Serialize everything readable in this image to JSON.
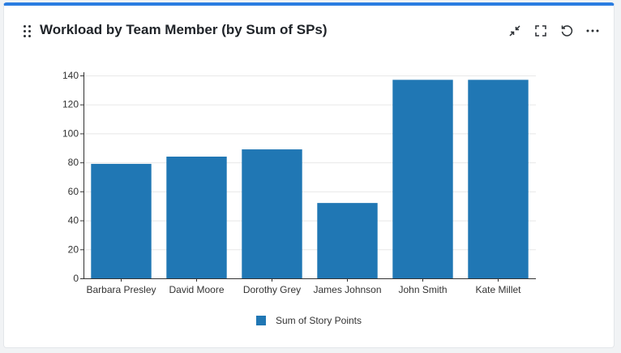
{
  "header": {
    "title": "Workload by Team Member (by Sum of SPs)",
    "icons": [
      "drag-handle-icon",
      "collapse-icon",
      "fullscreen-icon",
      "refresh-icon",
      "more-icon"
    ]
  },
  "chart_data": {
    "type": "bar",
    "categories": [
      "Barbara Presley",
      "David Moore",
      "Dorothy Grey",
      "James Johnson",
      "John Smith",
      "Kate Millet"
    ],
    "series": [
      {
        "name": "Sum of Story Points",
        "values": [
          79,
          84,
          89,
          52,
          137,
          137
        ],
        "color": "#2077b4"
      }
    ],
    "title": "",
    "xlabel": "",
    "ylabel": "",
    "ylim": [
      0,
      140
    ],
    "yticks": [
      0,
      20,
      40,
      60,
      80,
      100,
      120,
      140
    ],
    "grid": true,
    "legend": "bottom-center"
  },
  "theme": {
    "accent": "#2a7de1",
    "bar": "#2077b4",
    "grid": "#e8e8e8",
    "axis": "#333333"
  }
}
